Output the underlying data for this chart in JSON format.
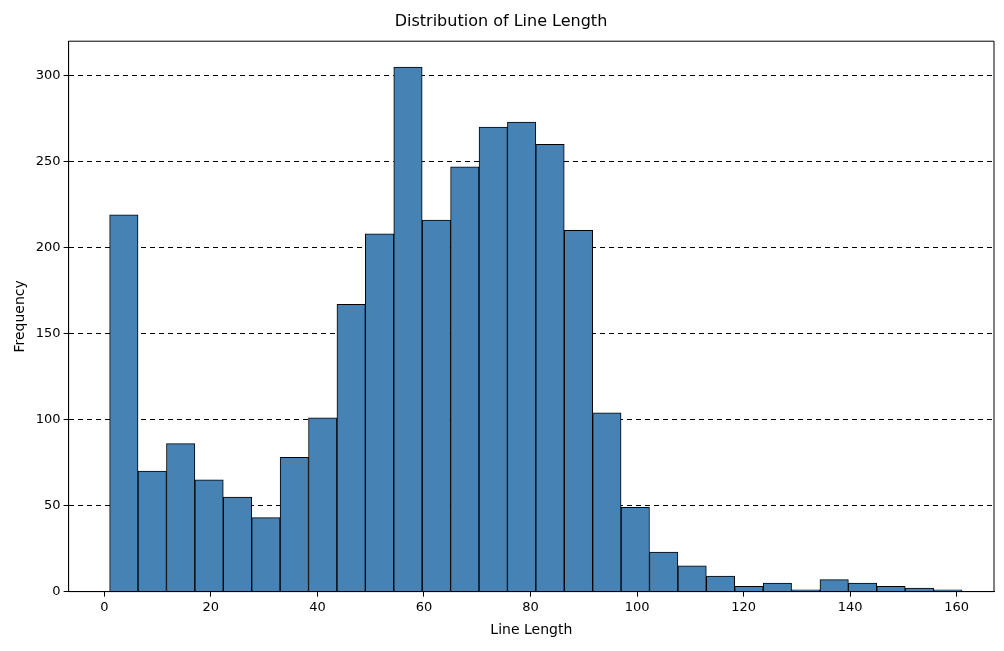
{
  "chart_data": {
    "type": "histogram",
    "title": "Distribution of Line Length",
    "xlabel": "Line Length",
    "ylabel": "Frequency",
    "bins": [
      1,
      6.33,
      11.67,
      17,
      22.33,
      27.67,
      33,
      38.33,
      43.67,
      49,
      54.33,
      59.67,
      65,
      70.33,
      75.67,
      81,
      86.33,
      91.67,
      97,
      102.33,
      107.67,
      113,
      118.33,
      123.67,
      129,
      134.33,
      139.67,
      145,
      150.33,
      155.67,
      161
    ],
    "values": [
      219,
      70,
      86,
      65,
      55,
      43,
      78,
      101,
      167,
      208,
      305,
      216,
      247,
      270,
      273,
      260,
      210,
      104,
      49,
      23,
      15,
      9,
      3,
      5,
      1,
      7,
      5,
      3,
      2,
      1
    ],
    "color": "#4682b4",
    "xlim": [
      -6.7,
      167
    ],
    "xticks": [
      0,
      20,
      40,
      60,
      80,
      100,
      120,
      140,
      160
    ],
    "ylim": [
      0,
      320
    ],
    "yticks": [
      0,
      50,
      100,
      150,
      200,
      250,
      300
    ],
    "grid": "y"
  }
}
